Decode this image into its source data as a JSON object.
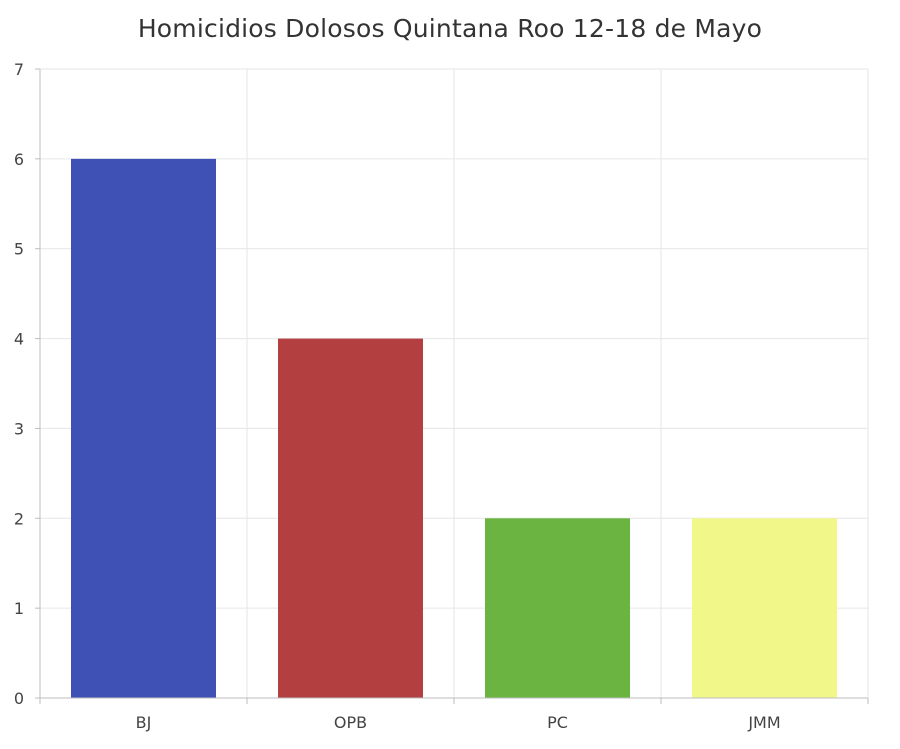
{
  "chart_data": {
    "type": "bar",
    "title": "Homicidios Dolosos Quintana Roo 12-18 de Mayo",
    "xlabel": "",
    "ylabel": "",
    "categories": [
      "BJ",
      "OPB",
      "PC",
      "JMM"
    ],
    "values": [
      6,
      4,
      2,
      2
    ],
    "colors": [
      "#3f51b5",
      "#b33f40",
      "#6cb442",
      "#f2f78a"
    ],
    "ylim": [
      0,
      7
    ],
    "yticks": [
      "0",
      "1",
      "2",
      "3",
      "4",
      "5",
      "6",
      "7"
    ],
    "grid": true,
    "legend": "none"
  }
}
